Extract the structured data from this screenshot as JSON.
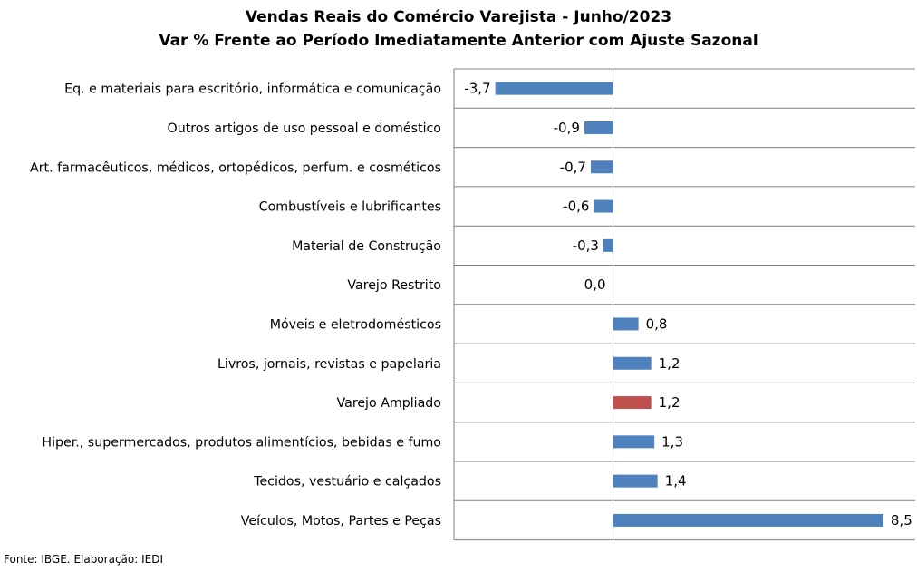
{
  "chart_data": {
    "type": "bar",
    "orientation": "horizontal",
    "title": "Vendas Reais do Comércio Varejista - Junho/2023",
    "subtitle": "Var % Frente ao Período Imediatamente Anterior com Ajuste Sazonal",
    "categories": [
      "Eq. e materiais para escritório, informática e comunicação",
      "Outros artigos de uso pessoal e doméstico",
      "Art. farmacêuticos, médicos, ortopédicos, perfum. e cosméticos",
      "Combustíveis e lubrificantes",
      "Material de Construção",
      "Varejo Restrito",
      "Móveis e eletrodomésticos",
      "Livros, jornais, revistas e papelaria",
      "Varejo Ampliado",
      "Hiper., supermercados, produtos alimentícios, bebidas e fumo",
      "Tecidos, vestuário e calçados",
      "Veículos, Motos, Partes e Peças"
    ],
    "values": [
      -3.7,
      -0.9,
      -0.7,
      -0.6,
      -0.3,
      0.0,
      0.8,
      1.2,
      1.2,
      1.3,
      1.4,
      8.5
    ],
    "value_labels": [
      "-3,7",
      "-0,9",
      "-0,7",
      "-0,6",
      "-0,3",
      "0,0",
      "0,8",
      "1,2",
      "1,2",
      "1,3",
      "1,4",
      "8,5"
    ],
    "highlight_index": 8,
    "colors": {
      "default": "#4F81BD",
      "highlight": "#C0504D",
      "grid": "#808080"
    },
    "xlim": [
      -5,
      9.5
    ],
    "grid": true,
    "legend": "none"
  },
  "footer": {
    "source": "Fonte: IBGE. Elaboração: IEDI"
  }
}
